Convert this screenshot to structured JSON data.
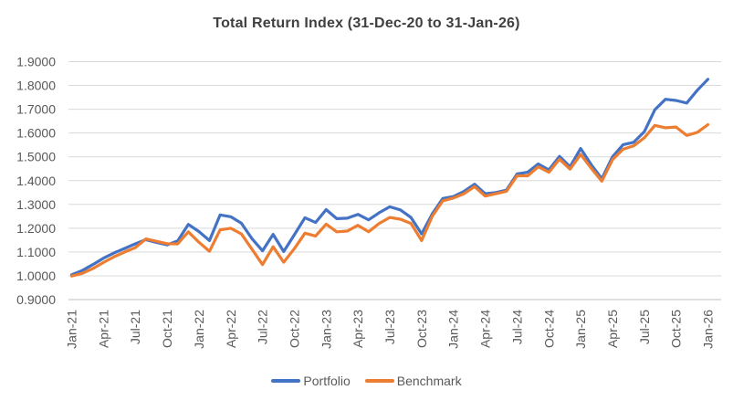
{
  "chart_data": {
    "type": "line",
    "title": "Total Return Index (31-Dec-20 to 31-Jan-26)",
    "xlabel": "",
    "ylabel": "",
    "ylim": [
      0.9,
      1.9
    ],
    "grid": true,
    "legend_position": "bottom",
    "x_tick_interval": 3,
    "x_tick_labels": [
      "Jan-21",
      "Apr-21",
      "Jul-21",
      "Oct-21",
      "Jan-22",
      "Apr-22",
      "Jul-22",
      "Oct-22",
      "Jan-23",
      "Apr-23",
      "Jul-23",
      "Oct-23",
      "Jan-24",
      "Apr-24",
      "Jul-24",
      "Oct-24",
      "Jan-25",
      "Apr-25",
      "Jul-25",
      "Oct-25",
      "Jan-26"
    ],
    "y_tick_labels": [
      "1.9000",
      "1.8000",
      "1.7000",
      "1.6000",
      "1.5000",
      "1.4000",
      "1.3000",
      "1.2000",
      "1.1000",
      "1.0000",
      "0.9000"
    ],
    "x": [
      "Jan-21",
      "Feb-21",
      "Mar-21",
      "Apr-21",
      "May-21",
      "Jun-21",
      "Jul-21",
      "Aug-21",
      "Sep-21",
      "Oct-21",
      "Nov-21",
      "Dec-21",
      "Jan-22",
      "Feb-22",
      "Mar-22",
      "Apr-22",
      "May-22",
      "Jun-22",
      "Jul-22",
      "Aug-22",
      "Sep-22",
      "Oct-22",
      "Nov-22",
      "Dec-22",
      "Jan-23",
      "Feb-23",
      "Mar-23",
      "Apr-23",
      "May-23",
      "Jun-23",
      "Jul-23",
      "Aug-23",
      "Sep-23",
      "Oct-23",
      "Nov-23",
      "Dec-23",
      "Jan-24",
      "Feb-24",
      "Mar-24",
      "Apr-24",
      "May-24",
      "Jun-24",
      "Jul-24",
      "Aug-24",
      "Sep-24",
      "Oct-24",
      "Nov-24",
      "Dec-24",
      "Jan-25",
      "Feb-25",
      "Mar-25",
      "Apr-25",
      "May-25",
      "Jun-25",
      "Jul-25",
      "Aug-25",
      "Sep-25",
      "Oct-25",
      "Nov-25",
      "Dec-25",
      "Jan-26"
    ],
    "series": [
      {
        "name": "Portfolio",
        "color": "#4472C4",
        "values": [
          1.004,
          1.022,
          1.047,
          1.074,
          1.096,
          1.115,
          1.134,
          1.152,
          1.14,
          1.13,
          1.147,
          1.216,
          1.186,
          1.148,
          1.256,
          1.248,
          1.221,
          1.156,
          1.105,
          1.174,
          1.102,
          1.172,
          1.244,
          1.224,
          1.278,
          1.24,
          1.242,
          1.258,
          1.235,
          1.265,
          1.29,
          1.277,
          1.245,
          1.176,
          1.26,
          1.325,
          1.333,
          1.355,
          1.385,
          1.345,
          1.35,
          1.36,
          1.428,
          1.435,
          1.47,
          1.445,
          1.502,
          1.458,
          1.535,
          1.467,
          1.408,
          1.5,
          1.551,
          1.561,
          1.605,
          1.698,
          1.742,
          1.737,
          1.726,
          1.78,
          1.826
        ]
      },
      {
        "name": "Benchmark",
        "color": "#ED7D31",
        "values": [
          0.999,
          1.01,
          1.03,
          1.056,
          1.08,
          1.1,
          1.118,
          1.155,
          1.145,
          1.135,
          1.134,
          1.185,
          1.141,
          1.103,
          1.193,
          1.2,
          1.176,
          1.112,
          1.047,
          1.122,
          1.057,
          1.114,
          1.179,
          1.167,
          1.217,
          1.185,
          1.188,
          1.212,
          1.185,
          1.22,
          1.245,
          1.238,
          1.22,
          1.148,
          1.25,
          1.315,
          1.327,
          1.345,
          1.375,
          1.335,
          1.345,
          1.355,
          1.42,
          1.42,
          1.458,
          1.435,
          1.49,
          1.448,
          1.51,
          1.452,
          1.398,
          1.488,
          1.532,
          1.546,
          1.58,
          1.632,
          1.622,
          1.625,
          1.59,
          1.603,
          1.635
        ]
      }
    ],
    "colors": {
      "title": "#404040",
      "axis_text": "#595959",
      "gridline": "#D9D9D9",
      "axis_line": "#BFBFBF",
      "background": "#FFFFFF"
    }
  }
}
